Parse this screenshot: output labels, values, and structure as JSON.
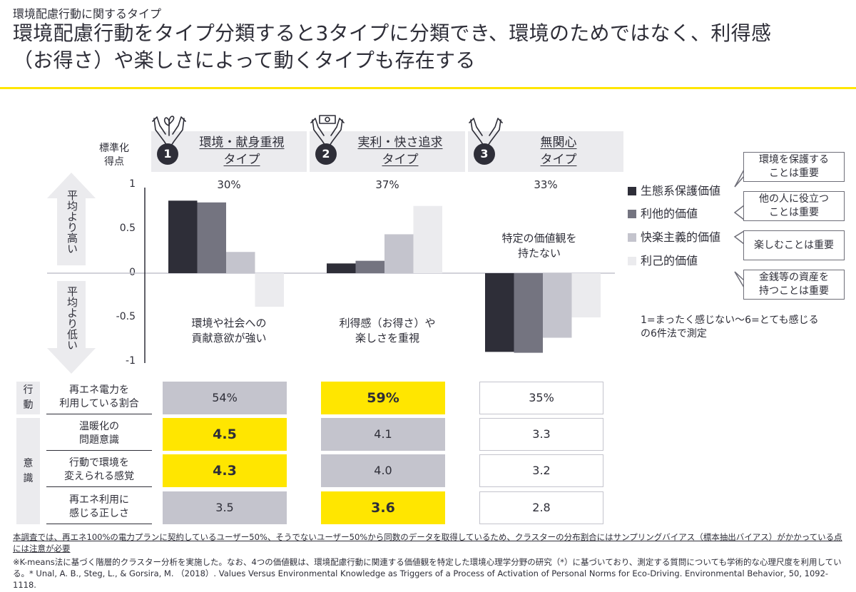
{
  "header": {
    "subtitle": "環境配慮行動に関するタイプ",
    "title": "環境配慮行動をタイプ分類すると3タイプに分類でき、環境のためではなく、利得感\n（お得さ）や楽しさによって動くタイプも存在する",
    "accent_color": "#ffe600"
  },
  "types": [
    {
      "number": "1",
      "name": "環境・献身重視\nタイプ",
      "share": "30%",
      "icon": "hands-sprout-icon",
      "note": "環境や社会への\n貢献意欲が強い"
    },
    {
      "number": "2",
      "name": "実利・快さ追求\nタイプ",
      "share": "37%",
      "icon": "hands-money-icon",
      "note": "利得感（お得さ）や\n楽しさを重視"
    },
    {
      "number": "3",
      "name": "無関心\nタイプ",
      "share": "33%",
      "icon": "open-hands-icon",
      "note": "特定の価値観を\n持たない"
    }
  ],
  "axis": {
    "title": "標準化\n得点",
    "above_label": "平均より高い",
    "below_label": "平均より低い"
  },
  "legend": {
    "items": [
      {
        "label": "生態系保護価値",
        "color": "#2e2e38",
        "callout": "環境を保護する\nことは重要"
      },
      {
        "label": "利他的価値",
        "color": "#747480",
        "callout": "他の人に役立つ\nことは重要"
      },
      {
        "label": "快楽主義的価値",
        "color": "#c4c4cd",
        "callout": "楽しむことは重要"
      },
      {
        "label": "利己的価値",
        "color": "#ebebee",
        "callout": "金銭等の資産を\n持つことは重要"
      }
    ],
    "scale_note": "1=まったく感じない～6=とても感じる\nの6件法で測定"
  },
  "chart_data": {
    "type": "bar",
    "title": "",
    "ylabel": "標準化得点",
    "xlabel": "",
    "categories": [
      "環境・献身重視タイプ",
      "実利・快さ追求タイプ",
      "無関心タイプ"
    ],
    "series": [
      {
        "name": "生態系保護価値",
        "values": [
          0.82,
          0.11,
          -0.89
        ]
      },
      {
        "name": "利他的価値",
        "values": [
          0.8,
          0.14,
          -0.9
        ]
      },
      {
        "name": "快楽主義的価値",
        "values": [
          0.24,
          0.44,
          -0.73
        ]
      },
      {
        "name": "利己的価値",
        "values": [
          -0.38,
          0.76,
          -0.5
        ]
      }
    ],
    "ylim": [
      -1,
      1
    ],
    "yticks": [
      "1",
      "0.5",
      "0",
      "-0.5",
      "-1"
    ],
    "ytick_values": [
      1,
      0.5,
      0,
      -0.5,
      -1
    ],
    "grid": false,
    "legend_position": "right"
  },
  "table": {
    "side_labels": [
      {
        "label": "行\n動"
      },
      {
        "label": "意\n識"
      }
    ],
    "rows": [
      {
        "label": "再エネ電力を\n利用している割合",
        "values": [
          "54%",
          "59%",
          "35%"
        ],
        "styles": [
          "gray",
          "yellow",
          "white"
        ]
      },
      {
        "label": "温暖化の\n問題意識",
        "values": [
          "4.5",
          "4.1",
          "3.3"
        ],
        "styles": [
          "yellow",
          "gray",
          "white"
        ]
      },
      {
        "label": "行動で環境を\n変えられる感覚",
        "values": [
          "4.3",
          "4.0",
          "3.2"
        ],
        "styles": [
          "yellow",
          "gray",
          "white"
        ]
      },
      {
        "label": "再エネ利用に\n感じる正しさ",
        "values": [
          "3.5",
          "3.6",
          "2.8"
        ],
        "styles": [
          "gray",
          "yellow",
          "white"
        ]
      }
    ]
  },
  "footnotes": {
    "note1": "本調査では、再エネ100%の電力プランに契約しているユーザー50%、そうでないユーザー50%から同数のデータを取得しているため、クラスターの分布割合にはサンプリングバイアス（標本抽出バイアス）がかかっている点には注意が必要",
    "note2": "※K-means法に基づく階層的クラスター分析を実施した。なお、4つの価値観は、環境配慮行動に関連する価値観を特定した環境心理学分野の研究（*）に基づいており、測定する質問についても学術的な心理尺度を利用している。* Unal, A. B., Steg, L., & Gorsira, M. （2018）. Values Versus Environmental Knowledge as Triggers of a Process of Activation of Personal Norms for Eco-Driving. Environmental Behavior, 50, 1092-1118."
  }
}
